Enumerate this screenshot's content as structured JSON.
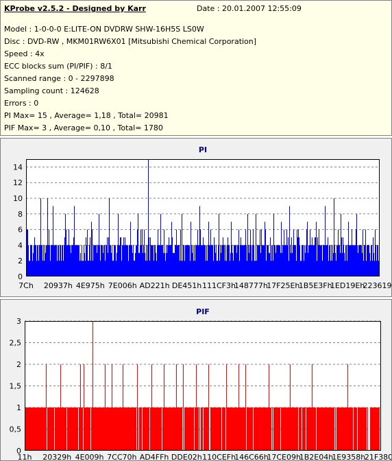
{
  "header": {
    "title": "KProbe v2.5.2 - Designed by Karr",
    "date": "Date : 20.01.2007 12:55:09",
    "lines": [
      "Model : 1-0-0-0 E:LITE-ON DVDRW SHW-16H5S  LS0W",
      "Disc : DVD-RW , MKM01RW6X01 [Mitsubishi Chemical Corporation]",
      "Speed : 4x",
      "ECC blocks sum (PI/PIF) : 8/1",
      "Scanned range : 0 - 2297898",
      "Sampling count : 124628",
      "Errors : 0",
      "PI Max= 15 , Average= 1,18 , Total= 20981",
      "PIF Max= 3 , Average= 0,10 , Total= 1780"
    ]
  },
  "chart_data": [
    {
      "type": "bar",
      "title": "PI",
      "color": "#0000ff",
      "ylim": [
        0,
        15
      ],
      "yticks": [
        "0",
        "2",
        "4",
        "6",
        "8",
        "10",
        "12",
        "14"
      ],
      "ytick_values": [
        0,
        2,
        4,
        6,
        8,
        10,
        12,
        14
      ],
      "xticks": [
        "7Ch",
        "20937h",
        "4E975h",
        "7E006h",
        "AD221h",
        "DE451h",
        "111CF3h",
        "148777h",
        "17F25Eh",
        "1B5E3Fh",
        "1ED19Eh",
        "223619h"
      ],
      "max": 15,
      "average": 1.18,
      "total": 20981,
      "baseline_level": 4,
      "spikes": [
        {
          "x": 0.04,
          "y": 10
        },
        {
          "x": 0.06,
          "y": 10
        },
        {
          "x": 0.075,
          "y": 9
        },
        {
          "x": 0.11,
          "y": 8
        },
        {
          "x": 0.135,
          "y": 9
        },
        {
          "x": 0.185,
          "y": 7
        },
        {
          "x": 0.205,
          "y": 8
        },
        {
          "x": 0.235,
          "y": 10
        },
        {
          "x": 0.26,
          "y": 8
        },
        {
          "x": 0.295,
          "y": 7
        },
        {
          "x": 0.315,
          "y": 8
        },
        {
          "x": 0.345,
          "y": 15
        },
        {
          "x": 0.38,
          "y": 8
        },
        {
          "x": 0.41,
          "y": 7
        },
        {
          "x": 0.44,
          "y": 8
        },
        {
          "x": 0.465,
          "y": 7
        },
        {
          "x": 0.49,
          "y": 9
        },
        {
          "x": 0.515,
          "y": 7
        },
        {
          "x": 0.545,
          "y": 8
        },
        {
          "x": 0.58,
          "y": 7
        },
        {
          "x": 0.6,
          "y": 6
        },
        {
          "x": 0.625,
          "y": 8
        },
        {
          "x": 0.65,
          "y": 8
        },
        {
          "x": 0.675,
          "y": 7
        },
        {
          "x": 0.7,
          "y": 8
        },
        {
          "x": 0.72,
          "y": 7
        },
        {
          "x": 0.745,
          "y": 9
        },
        {
          "x": 0.77,
          "y": 6
        },
        {
          "x": 0.795,
          "y": 7
        },
        {
          "x": 0.82,
          "y": 7
        },
        {
          "x": 0.845,
          "y": 9
        },
        {
          "x": 0.87,
          "y": 10
        },
        {
          "x": 0.89,
          "y": 8
        },
        {
          "x": 0.91,
          "y": 7
        },
        {
          "x": 0.935,
          "y": 8
        },
        {
          "x": 0.96,
          "y": 6
        },
        {
          "x": 0.98,
          "y": 5
        }
      ]
    },
    {
      "type": "bar",
      "title": "PIF",
      "color": "#ff0000",
      "ylim": [
        0,
        3
      ],
      "yticks": [
        "0",
        "0,5",
        "1",
        "1,5",
        "2",
        "2,5",
        "3"
      ],
      "ytick_values": [
        0,
        0.5,
        1,
        1.5,
        2,
        2.5,
        3
      ],
      "xticks": [
        "11h",
        "20329h",
        "4E009h",
        "7CC70h",
        "AD4FFh",
        "DDE02h",
        "110CEFh",
        "146C66h",
        "17CE09h",
        "1B2E04h",
        "1E9358h",
        "21F380h"
      ],
      "max": 3,
      "average": 0.1,
      "total": 1780,
      "baseline_level": 1,
      "spikes": [
        {
          "x": 0.06,
          "y": 2
        },
        {
          "x": 0.1,
          "y": 2
        },
        {
          "x": 0.155,
          "y": 2
        },
        {
          "x": 0.165,
          "y": 2
        },
        {
          "x": 0.19,
          "y": 3
        },
        {
          "x": 0.225,
          "y": 2
        },
        {
          "x": 0.245,
          "y": 2
        },
        {
          "x": 0.275,
          "y": 2
        },
        {
          "x": 0.315,
          "y": 2
        },
        {
          "x": 0.355,
          "y": 2
        },
        {
          "x": 0.39,
          "y": 2
        },
        {
          "x": 0.425,
          "y": 2
        },
        {
          "x": 0.445,
          "y": 2
        },
        {
          "x": 0.48,
          "y": 2
        },
        {
          "x": 0.515,
          "y": 2
        },
        {
          "x": 0.565,
          "y": 2
        },
        {
          "x": 0.6,
          "y": 2
        },
        {
          "x": 0.62,
          "y": 2
        },
        {
          "x": 0.685,
          "y": 2
        },
        {
          "x": 0.745,
          "y": 2
        },
        {
          "x": 0.805,
          "y": 2
        },
        {
          "x": 0.905,
          "y": 2
        }
      ]
    }
  ]
}
